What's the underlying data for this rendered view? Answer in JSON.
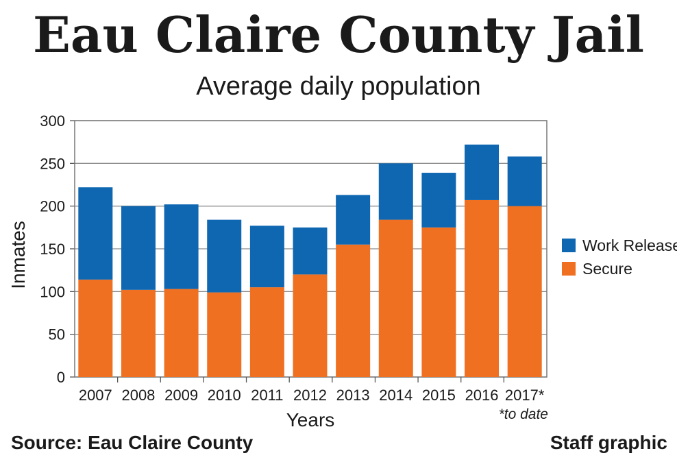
{
  "header": {
    "title": "Eau Claire County Jail",
    "subtitle": "Average daily population"
  },
  "chart_data": {
    "type": "bar",
    "stacked": true,
    "title": "Eau Claire County Jail",
    "subtitle": "Average daily population",
    "xlabel": "Years",
    "ylabel": "Inmates",
    "ylim": [
      0,
      300
    ],
    "yticks": [
      0,
      50,
      100,
      150,
      200,
      250,
      300
    ],
    "grid": true,
    "legend_position": "right",
    "categories": [
      "2007",
      "2008",
      "2009",
      "2010",
      "2011",
      "2012",
      "2013",
      "2014",
      "2015",
      "2016",
      "2017*"
    ],
    "series": [
      {
        "name": "Secure",
        "color": "#f07022",
        "values": [
          114,
          102,
          103,
          99,
          105,
          120,
          155,
          184,
          175,
          207,
          200
        ]
      },
      {
        "name": "Work Release",
        "color": "#0f67b1",
        "values": [
          108,
          98,
          99,
          85,
          72,
          55,
          58,
          66,
          64,
          65,
          58
        ]
      }
    ],
    "legend": [
      "Work Release",
      "Secure"
    ],
    "annotation": "*to date"
  },
  "footer": {
    "source": "Source: Eau Claire County",
    "credit": "Staff graphic"
  }
}
